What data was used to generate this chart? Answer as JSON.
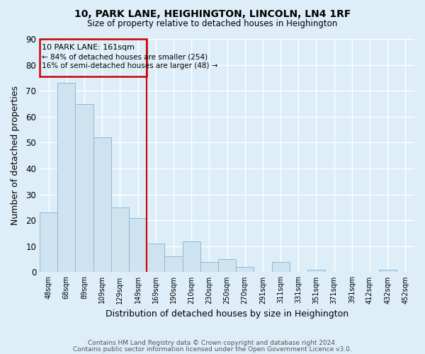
{
  "title": "10, PARK LANE, HEIGHINGTON, LINCOLN, LN4 1RF",
  "subtitle": "Size of property relative to detached houses in Heighington",
  "xlabel": "Distribution of detached houses by size in Heighington",
  "ylabel": "Number of detached properties",
  "bar_color": "#cfe2f0",
  "bar_edge_color": "#90b8d8",
  "background_color": "#ddeef8",
  "grid_color": "#ffffff",
  "categories": [
    "48sqm",
    "68sqm",
    "89sqm",
    "109sqm",
    "129sqm",
    "149sqm",
    "169sqm",
    "190sqm",
    "210sqm",
    "230sqm",
    "250sqm",
    "270sqm",
    "291sqm",
    "311sqm",
    "331sqm",
    "351sqm",
    "371sqm",
    "391sqm",
    "412sqm",
    "432sqm",
    "452sqm"
  ],
  "values": [
    23,
    73,
    65,
    52,
    25,
    21,
    11,
    6,
    12,
    4,
    5,
    2,
    0,
    4,
    0,
    1,
    0,
    0,
    0,
    1,
    0
  ],
  "ylim": [
    0,
    90
  ],
  "yticks": [
    0,
    10,
    20,
    30,
    40,
    50,
    60,
    70,
    80,
    90
  ],
  "vline_color": "#cc0000",
  "vline_index": 6,
  "annotation_title": "10 PARK LANE: 161sqm",
  "annotation_line1": "← 84% of detached houses are smaller (254)",
  "annotation_line2": "16% of semi-detached houses are larger (48) →",
  "footer1": "Contains HM Land Registry data © Crown copyright and database right 2024.",
  "footer2": "Contains public sector information licensed under the Open Government Licence v3.0."
}
